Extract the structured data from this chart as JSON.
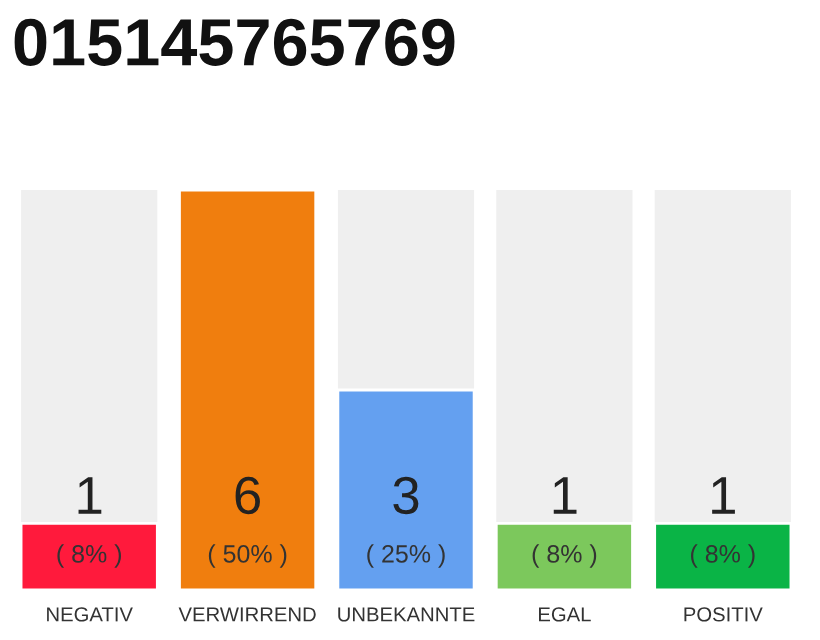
{
  "chart_data": {
    "type": "bar",
    "title": "015145765769",
    "categories": [
      "NEGATIV",
      "VERWIRREND",
      "UNBEKANNTE",
      "EGAL",
      "POSITIV"
    ],
    "values": [
      1,
      6,
      3,
      1,
      1
    ],
    "colors": [
      "#ff1a3c",
      "#f07e0e",
      "#64a0f0",
      "#7cc85c",
      "#0ab446"
    ],
    "ylim": [
      0,
      6
    ],
    "data_labels": true,
    "annotations": [
      "( 8% )",
      "( 50% )",
      "( 25% )",
      "( 8% )",
      "( 8% )"
    ],
    "grid": false,
    "legend": false
  }
}
